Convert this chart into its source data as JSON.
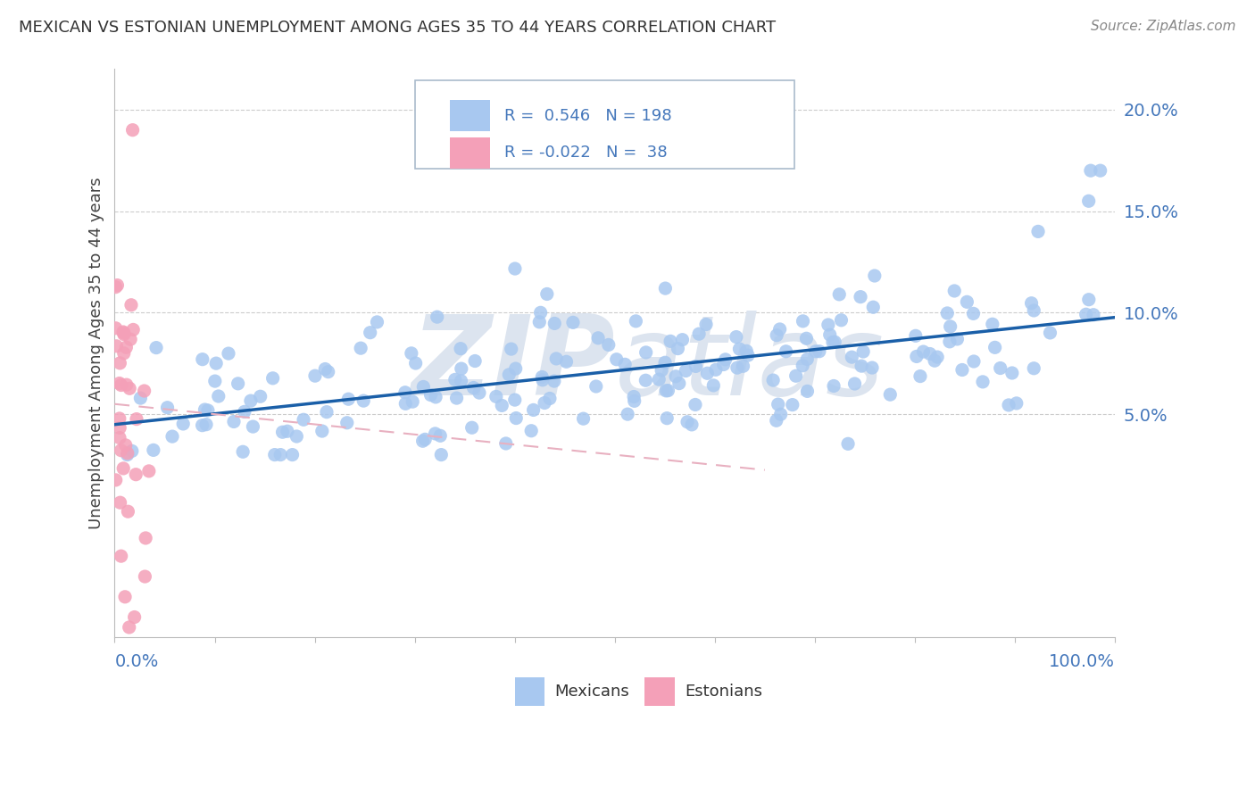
{
  "title": "MEXICAN VS ESTONIAN UNEMPLOYMENT AMONG AGES 35 TO 44 YEARS CORRELATION CHART",
  "source": "Source: ZipAtlas.com",
  "ylabel": "Unemployment Among Ages 35 to 44 years",
  "y_ticks": [
    0.05,
    0.1,
    0.15,
    0.2
  ],
  "y_tick_labels": [
    "5.0%",
    "10.0%",
    "15.0%",
    "20.0%"
  ],
  "x_range": [
    0.0,
    1.0
  ],
  "y_range": [
    -0.06,
    0.22
  ],
  "blue_R": 0.546,
  "blue_N": 198,
  "pink_R": -0.022,
  "pink_N": 38,
  "blue_color": "#a8c8f0",
  "pink_color": "#f4a0b8",
  "blue_line_color": "#1a5fa8",
  "pink_line_color": "#e8b0c0",
  "watermark_color": "#dce4ef",
  "legend_label_blue": "Mexicans",
  "legend_label_pink": "Estonians",
  "background_color": "#ffffff",
  "grid_color": "#cccccc",
  "title_color": "#333333",
  "axis_label_color": "#4477bb"
}
